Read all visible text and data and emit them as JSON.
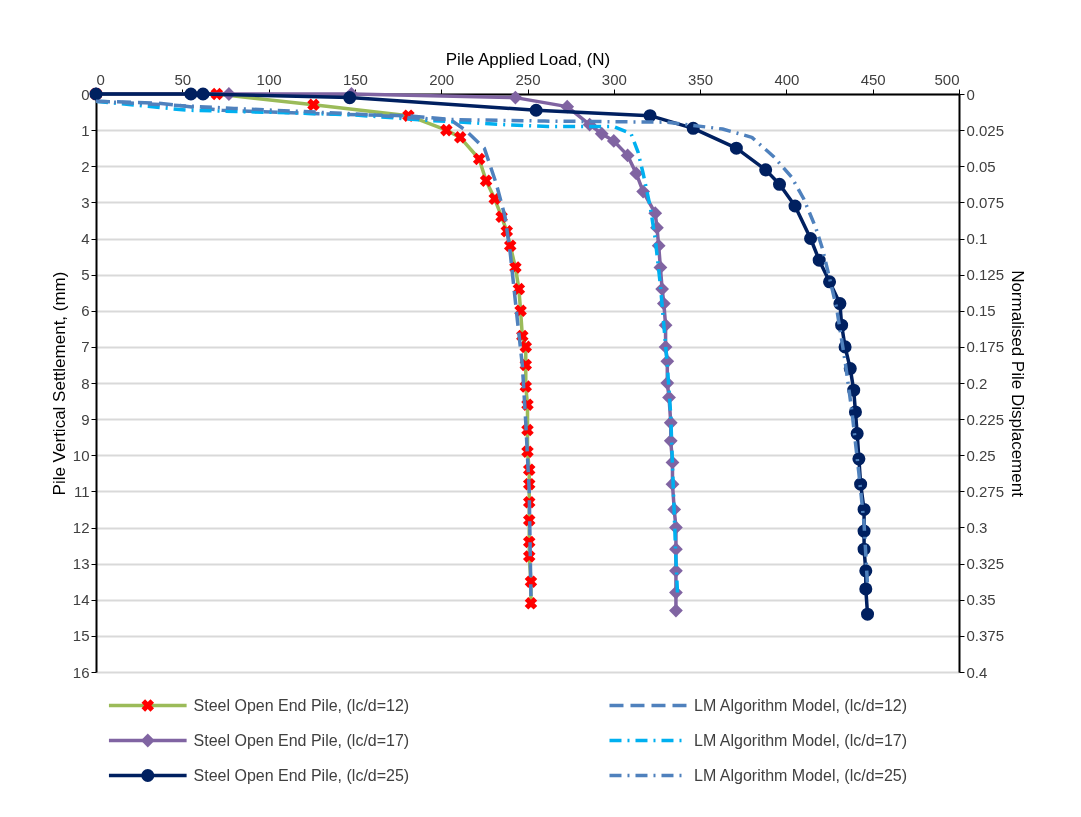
{
  "chart_data": {
    "type": "line",
    "xlabel": "Pile Applied Load, (N)",
    "ylabel": "Pile Vertical Settlement, (mm)",
    "y2label": "Normalised Pile Displacement",
    "xlim": [
      0,
      500
    ],
    "xticks": [
      0,
      50,
      100,
      150,
      200,
      250,
      300,
      350,
      400,
      450,
      500
    ],
    "ylim": [
      16,
      0
    ],
    "yticks": [
      0,
      1,
      2,
      3,
      4,
      5,
      6,
      7,
      8,
      9,
      10,
      11,
      12,
      13,
      14,
      15,
      16
    ],
    "y2lim": [
      0.4,
      0
    ],
    "y2ticks": [
      0,
      0.025,
      0.05,
      0.075,
      0.1,
      0.125,
      0.15,
      0.175,
      0.2,
      0.225,
      0.25,
      0.275,
      0.3,
      0.325,
      0.35,
      0.375,
      0.4
    ],
    "grid": "y",
    "legend": "bottom",
    "series": [
      {
        "name": "Steel Open End Pile, (lc/d=12)",
        "color": "#9bbb59",
        "marker": "cross",
        "line_style": "solid",
        "colors": [
          "#ff0000",
          "#ff0000",
          "#ff0000",
          "#ff0000",
          "#ff0000",
          "#ff0000",
          "#ff0000",
          "#ff0000",
          "#ff0000",
          "#ff0000",
          "#ff0000",
          "#ff0000",
          "#ff0000",
          "#ff0000",
          "#ff0000",
          "#ff0000",
          "#ff0000",
          "#ff0000",
          "#ff0000",
          "#ff0000",
          "#ff0000",
          "#ff0000",
          "#ff0000",
          "#ff0000",
          "#ff0000",
          "#ff0000",
          "#ff0000",
          "#ff0000",
          "#ff0000",
          "#ff0000"
        ],
        "x": [
          0,
          70,
          126,
          181,
          203,
          211,
          222,
          226,
          231,
          235,
          238,
          240,
          243,
          245,
          246,
          247,
          249,
          249,
          249,
          250,
          250,
          250,
          251,
          251,
          251,
          251,
          251,
          251,
          252,
          252
        ],
        "values": [
          0,
          0,
          0.3,
          0.6,
          1.0,
          1.2,
          1.8,
          2.4,
          2.9,
          3.4,
          3.8,
          4.2,
          4.8,
          5.4,
          6.0,
          6.7,
          7.0,
          7.5,
          8.1,
          8.6,
          9.3,
          9.9,
          10.4,
          10.8,
          11.3,
          11.8,
          12.4,
          12.8,
          13.5,
          14.1
        ]
      },
      {
        "name": "LM Algorithm Model, (lc/d=12)",
        "color": "#4f81bd",
        "marker": "none",
        "line_style": "dashed",
        "x": [
          0,
          35,
          73,
          131,
          179,
          205,
          214,
          225,
          232,
          237,
          240,
          244,
          247,
          249,
          251,
          252
        ],
        "values": [
          0.2,
          0.25,
          0.45,
          0.55,
          0.6,
          0.7,
          1.0,
          1.5,
          2.5,
          3.4,
          4.4,
          6.2,
          7.5,
          9.1,
          11,
          13.9
        ]
      },
      {
        "name": "Steel Open End Pile, (lc/d=17)",
        "color": "#8064a2",
        "marker": "diamond",
        "line_style": "solid",
        "x": [
          0,
          77,
          148,
          243,
          273,
          286,
          293,
          300,
          308,
          313,
          317,
          324,
          325,
          326,
          327,
          328,
          329,
          330,
          330,
          331,
          331,
          332,
          333,
          333,
          334,
          334,
          335,
          336,
          336,
          336,
          336,
          336
        ],
        "values": [
          0,
          0,
          0,
          0.1,
          0.35,
          0.85,
          1.1,
          1.3,
          1.7,
          2.2,
          2.7,
          3.3,
          3.7,
          4.2,
          4.8,
          5.4,
          5.8,
          6.4,
          7.0,
          7.4,
          8.0,
          8.4,
          9.1,
          9.6,
          10.2,
          10.8,
          11.5,
          12.0,
          12.6,
          13.2,
          13.8,
          14.3
        ]
      },
      {
        "name": "LM Algorithm Model, (lc/d=17)",
        "color": "#00b0f0",
        "marker": "none",
        "line_style": "dotted",
        "x": [
          0,
          53,
          112,
          150,
          189,
          237,
          262,
          300,
          310,
          314,
          317,
          321,
          324,
          327,
          329,
          331,
          333,
          334,
          335,
          336,
          337
        ],
        "values": [
          0.2,
          0.45,
          0.52,
          0.58,
          0.72,
          0.85,
          0.9,
          0.9,
          1.1,
          1.6,
          2.2,
          3.1,
          4.0,
          5.3,
          6.4,
          7.5,
          8.9,
          10.3,
          11.6,
          12.9,
          13.9
        ]
      },
      {
        "name": "Steel Open End Pile, (lc/d=25)",
        "color": "#002060",
        "marker": "circle",
        "line_style": "solid",
        "x": [
          0,
          55,
          62,
          147,
          255,
          321,
          346,
          371,
          388,
          396,
          405,
          414,
          419,
          425,
          431,
          432,
          434,
          437,
          439,
          440,
          441,
          442,
          443,
          445,
          445,
          445,
          446,
          446,
          447
        ],
        "values": [
          0,
          0,
          0,
          0.1,
          0.45,
          0.6,
          0.95,
          1.5,
          2.1,
          2.5,
          3.1,
          4.0,
          4.6,
          5.2,
          5.8,
          6.4,
          7.0,
          7.6,
          8.2,
          8.8,
          9.4,
          10.1,
          10.8,
          11.5,
          12.1,
          12.6,
          13.2,
          13.7,
          14.4
        ]
      },
      {
        "name": "LM Algorithm Model, (lc/d=25)",
        "color": "#4f81bd",
        "marker": "none",
        "line_style": "dotted",
        "x": [
          0,
          80,
          150,
          197,
          260,
          331,
          363,
          380,
          393,
          403,
          410,
          417,
          421,
          429,
          434,
          438,
          442,
          445,
          447
        ],
        "values": [
          0.2,
          0.4,
          0.55,
          0.7,
          0.75,
          0.78,
          0.97,
          1.2,
          1.75,
          2.3,
          2.9,
          3.7,
          4.3,
          5.9,
          7.4,
          8.8,
          10.5,
          11.9,
          13.6
        ]
      }
    ]
  }
}
